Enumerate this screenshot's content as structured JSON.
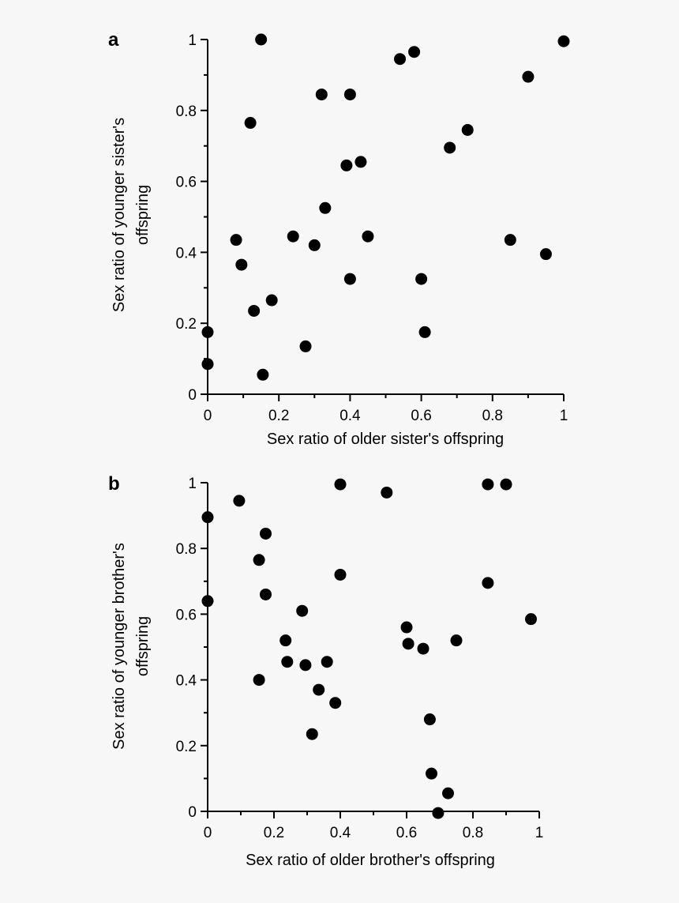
{
  "colors": {
    "background": "#f7f7f7",
    "ink": "#000000"
  },
  "chart_data": [
    {
      "type": "scatter",
      "panel": "a",
      "xlabel": "Sex ratio of older sister's offspring",
      "ylabel_lines": [
        "Sex ratio of younger sister's",
        "offspring"
      ],
      "xlim": [
        0,
        1
      ],
      "ylim": [
        0,
        1
      ],
      "x_ticks": [
        0,
        0.2,
        0.4,
        0.6,
        0.8,
        1
      ],
      "x_tick_labels": [
        "0",
        "0.2",
        "0.4",
        "0.6",
        "0.8",
        "1"
      ],
      "y_ticks": [
        0,
        0.2,
        0.4,
        0.6,
        0.8,
        1
      ],
      "y_tick_labels": [
        "0",
        "0.2",
        "0.4",
        "0.6",
        "0.8",
        "1"
      ],
      "grid": false,
      "points": [
        {
          "x": 0.15,
          "y": 1.0
        },
        {
          "x": 0.54,
          "y": 0.945
        },
        {
          "x": 0.58,
          "y": 0.965
        },
        {
          "x": 1.0,
          "y": 0.995
        },
        {
          "x": 0.9,
          "y": 0.895
        },
        {
          "x": 0.32,
          "y": 0.845
        },
        {
          "x": 0.4,
          "y": 0.845
        },
        {
          "x": 0.12,
          "y": 0.765
        },
        {
          "x": 0.73,
          "y": 0.745
        },
        {
          "x": 0.68,
          "y": 0.695
        },
        {
          "x": 0.39,
          "y": 0.645
        },
        {
          "x": 0.43,
          "y": 0.655
        },
        {
          "x": 0.33,
          "y": 0.525
        },
        {
          "x": 0.08,
          "y": 0.435
        },
        {
          "x": 0.24,
          "y": 0.445
        },
        {
          "x": 0.45,
          "y": 0.445
        },
        {
          "x": 0.85,
          "y": 0.435
        },
        {
          "x": 0.3,
          "y": 0.42
        },
        {
          "x": 0.95,
          "y": 0.395
        },
        {
          "x": 0.095,
          "y": 0.365
        },
        {
          "x": 0.4,
          "y": 0.325
        },
        {
          "x": 0.6,
          "y": 0.325
        },
        {
          "x": 0.18,
          "y": 0.265
        },
        {
          "x": 0.13,
          "y": 0.235
        },
        {
          "x": 0.61,
          "y": 0.175
        },
        {
          "x": 0.0,
          "y": 0.175
        },
        {
          "x": 0.275,
          "y": 0.135
        },
        {
          "x": 0.0,
          "y": 0.085
        },
        {
          "x": 0.155,
          "y": 0.055
        }
      ]
    },
    {
      "type": "scatter",
      "panel": "b",
      "xlabel": "Sex ratio of older brother's offspring",
      "ylabel_lines": [
        "Sex ratio of younger brother's",
        "offspring"
      ],
      "xlim": [
        0,
        1
      ],
      "ylim": [
        0,
        1
      ],
      "x_ticks": [
        0,
        0.2,
        0.4,
        0.6,
        0.8,
        1
      ],
      "x_tick_labels": [
        "0",
        "0.2",
        "0.4",
        "0.6",
        "0.8",
        "1"
      ],
      "y_ticks": [
        0,
        0.2,
        0.4,
        0.6,
        0.8,
        1
      ],
      "y_tick_labels": [
        "0",
        "0.2",
        "0.4",
        "0.6",
        "0.8",
        "1"
      ],
      "grid": false,
      "points": [
        {
          "x": 0.4,
          "y": 0.995
        },
        {
          "x": 0.845,
          "y": 0.995
        },
        {
          "x": 0.9,
          "y": 0.995
        },
        {
          "x": 0.54,
          "y": 0.97
        },
        {
          "x": 0.095,
          "y": 0.945
        },
        {
          "x": 0.0,
          "y": 0.895
        },
        {
          "x": 0.175,
          "y": 0.845
        },
        {
          "x": 0.155,
          "y": 0.765
        },
        {
          "x": 0.4,
          "y": 0.72
        },
        {
          "x": 0.845,
          "y": 0.695
        },
        {
          "x": 0.175,
          "y": 0.66
        },
        {
          "x": 0.0,
          "y": 0.64
        },
        {
          "x": 0.285,
          "y": 0.61
        },
        {
          "x": 0.975,
          "y": 0.585
        },
        {
          "x": 0.6,
          "y": 0.56
        },
        {
          "x": 0.235,
          "y": 0.52
        },
        {
          "x": 0.75,
          "y": 0.52
        },
        {
          "x": 0.605,
          "y": 0.51
        },
        {
          "x": 0.65,
          "y": 0.495
        },
        {
          "x": 0.24,
          "y": 0.455
        },
        {
          "x": 0.36,
          "y": 0.455
        },
        {
          "x": 0.295,
          "y": 0.445
        },
        {
          "x": 0.155,
          "y": 0.4
        },
        {
          "x": 0.335,
          "y": 0.37
        },
        {
          "x": 0.385,
          "y": 0.33
        },
        {
          "x": 0.67,
          "y": 0.28
        },
        {
          "x": 0.315,
          "y": 0.235
        },
        {
          "x": 0.675,
          "y": 0.115
        },
        {
          "x": 0.725,
          "y": 0.055
        },
        {
          "x": 0.695,
          "y": -0.005
        }
      ]
    }
  ]
}
